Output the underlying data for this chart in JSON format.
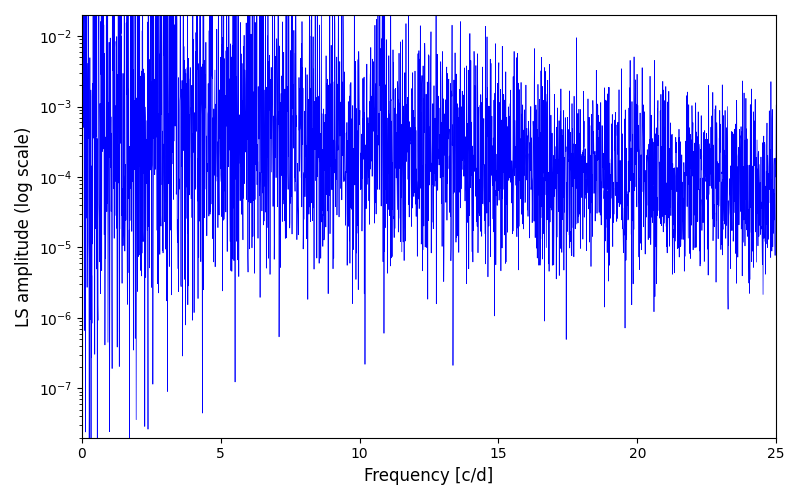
{
  "xlabel": "Frequency [c/d]",
  "ylabel": "LS amplitude (log scale)",
  "xlim": [
    0,
    25
  ],
  "ylim_log": [
    -7.7,
    -1.7
  ],
  "line_color": "#0000ff",
  "line_width": 0.5,
  "figsize": [
    8.0,
    5.0
  ],
  "dpi": 100,
  "bg_color": "#ffffff",
  "yscale": "log",
  "xticks": [
    0,
    5,
    10,
    15,
    20,
    25
  ],
  "seed": 12345,
  "n_points": 3000,
  "freq_max": 25.0
}
